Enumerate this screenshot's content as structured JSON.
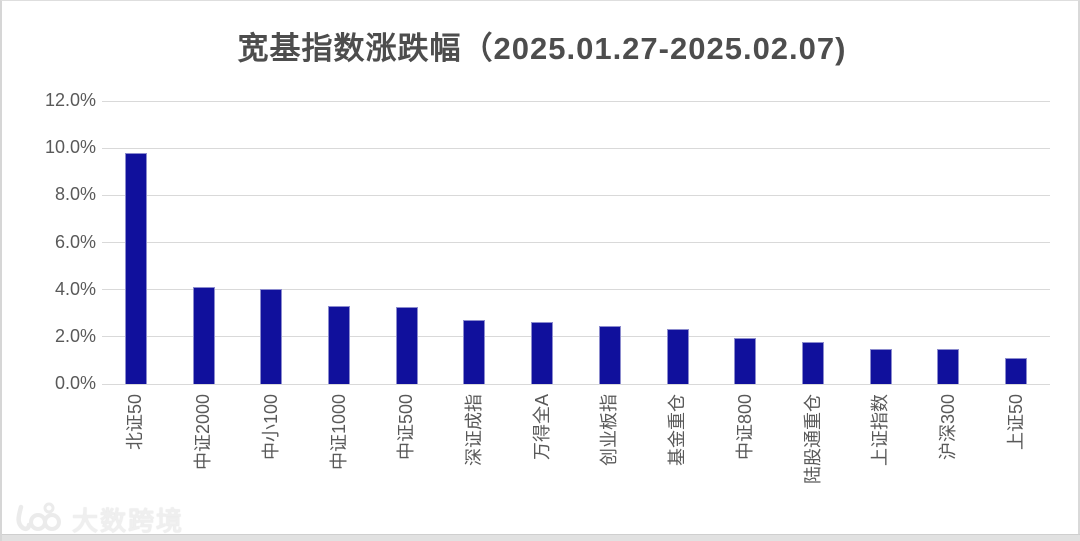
{
  "chart_data": {
    "type": "bar",
    "title": "宽基指数涨跌幅（2025.01.27-2025.02.07)",
    "categories": [
      "北证50",
      "中证2000",
      "中小100",
      "中证1000",
      "中证500",
      "深证成指",
      "万得全A",
      "创业板指",
      "基金重仓",
      "中证800",
      "陆股通重仓",
      "上证指数",
      "沪深300",
      "上证50"
    ],
    "values": [
      9.8,
      4.1,
      4.05,
      3.3,
      3.25,
      2.7,
      2.65,
      2.45,
      2.35,
      1.95,
      1.8,
      1.5,
      1.5,
      1.1
    ],
    "unit": "%",
    "ylim": [
      0,
      12
    ],
    "ytick_step": 2,
    "ytick_labels": [
      "0.0%",
      "2.0%",
      "4.0%",
      "6.0%",
      "8.0%",
      "10.0%",
      "12.0%"
    ],
    "grid": true,
    "legend": "none",
    "colors": {
      "bar_fill": "#10109c",
      "bar_border": "#8c8cce",
      "gridline": "#d9d9d9",
      "axis_text": "#595959",
      "title_text": "#4d4d4d"
    }
  },
  "watermark": {
    "icon": "100-infinity-logo",
    "text": "大数跨境"
  }
}
